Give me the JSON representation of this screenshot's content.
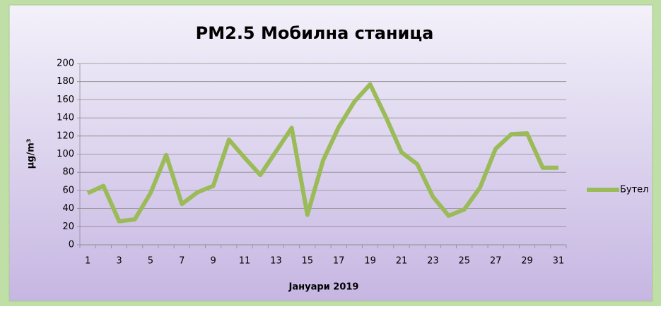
{
  "chart_data": {
    "type": "line",
    "title": "PM2.5 Мобилна станица",
    "x_label": "Јануари 2019",
    "y_label": "μg/m³",
    "categories": [
      1,
      null,
      3,
      null,
      5,
      null,
      7,
      null,
      9,
      null,
      11,
      null,
      13,
      null,
      15,
      null,
      17,
      null,
      19,
      null,
      21,
      null,
      23,
      null,
      25,
      null,
      27,
      null,
      29,
      null,
      31
    ],
    "series": [
      {
        "name": "Бутел",
        "color": "#9bbb59",
        "values": [
          57,
          65,
          26,
          28,
          57,
          99,
          45,
          58,
          65,
          116,
          96,
          77,
          103,
          129,
          33,
          93,
          130,
          158,
          177,
          141,
          102,
          89,
          53,
          32,
          39,
          63,
          106,
          122,
          123,
          85,
          85
        ]
      }
    ],
    "ylim": [
      0,
      200
    ],
    "yticks": [
      0,
      20,
      40,
      60,
      80,
      100,
      120,
      140,
      160,
      180,
      200
    ],
    "grid": true,
    "legend": "right"
  }
}
